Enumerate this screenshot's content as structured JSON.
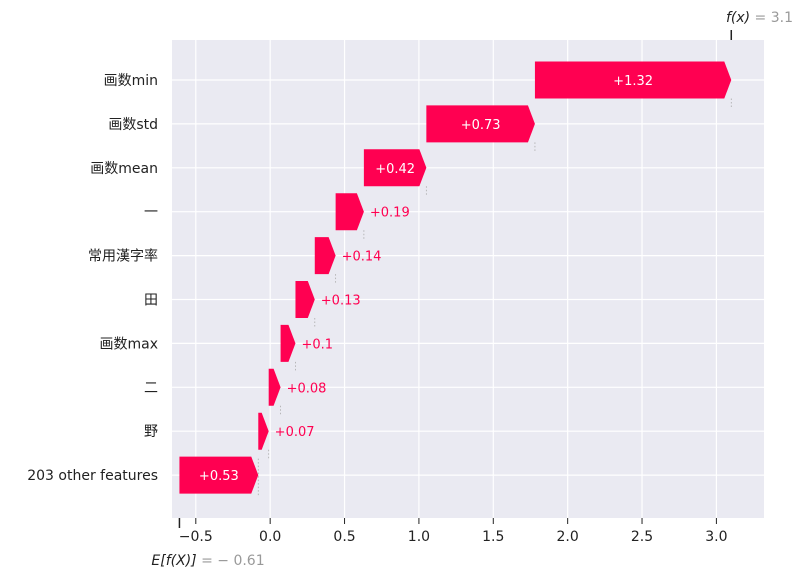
{
  "chart_data": {
    "type": "waterfall",
    "base_value": -0.61,
    "output_value": 3.1,
    "features": [
      {
        "name": "画数min",
        "value": 1.32,
        "label": "+1.32"
      },
      {
        "name": "画数std",
        "value": 0.73,
        "label": "+0.73"
      },
      {
        "name": "画数mean",
        "value": 0.42,
        "label": "+0.42"
      },
      {
        "name": "一",
        "value": 0.19,
        "label": "+0.19"
      },
      {
        "name": "常用漢字率",
        "value": 0.14,
        "label": "+0.14"
      },
      {
        "name": "田",
        "value": 0.13,
        "label": "+0.13"
      },
      {
        "name": "画数max",
        "value": 0.1,
        "label": "+0.1"
      },
      {
        "name": "二",
        "value": 0.08,
        "label": "+0.08"
      },
      {
        "name": "野",
        "value": 0.07,
        "label": "+0.07"
      },
      {
        "name": "203 other features",
        "value": 0.53,
        "label": "+0.53"
      }
    ],
    "xlim": [
      -0.66,
      3.32
    ],
    "xticks": [
      -0.5,
      0.0,
      0.5,
      1.0,
      1.5,
      2.0,
      2.5,
      3.0
    ],
    "xtick_labels": [
      "−0.5",
      "0.0",
      "0.5",
      "1.0",
      "1.5",
      "2.0",
      "2.5",
      "3.0"
    ],
    "grid": true,
    "bar_color": "#ff0051",
    "background_color": "#eaeaf2"
  },
  "annotations": {
    "fx_label": "f(x)",
    "fx_value": " = 3.1",
    "efx_label": "E[f(X)]",
    "efx_value": " = − 0.61"
  }
}
